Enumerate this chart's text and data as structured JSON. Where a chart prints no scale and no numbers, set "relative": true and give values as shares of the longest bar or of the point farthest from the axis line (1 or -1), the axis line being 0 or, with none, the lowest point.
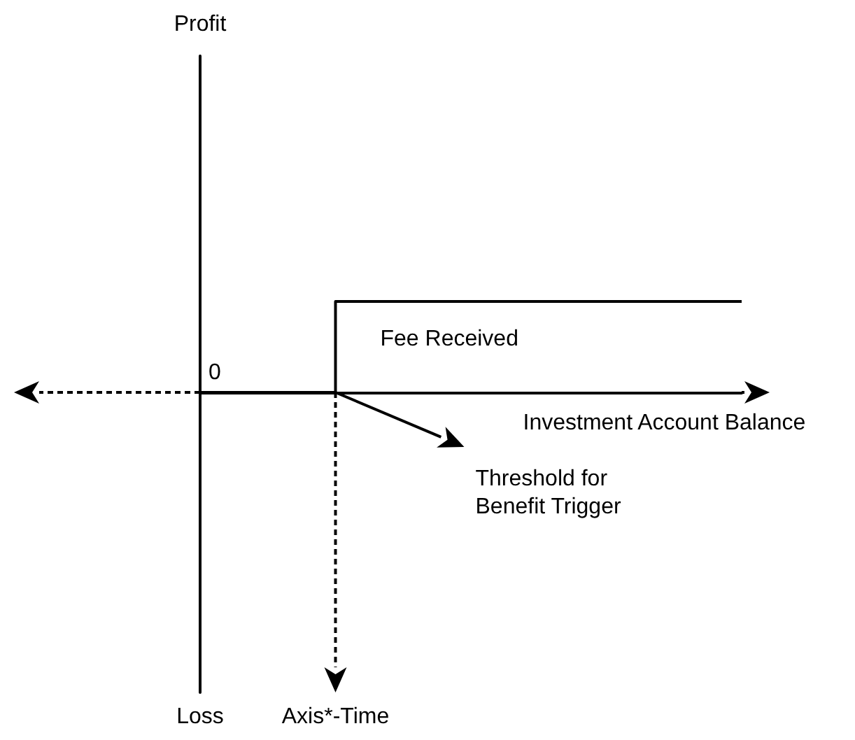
{
  "chart_data": {
    "type": "step",
    "relative": true,
    "categories": [
      null,
      null,
      null,
      null,
      null
    ],
    "series": [
      {
        "color": "#000000",
        "values": [
          0,
          1,
          1,
          1,
          1
        ]
      }
    ],
    "xlabel": "Investment Account Balance",
    "annotations": [
      "Profit",
      "0",
      "Fee Received",
      "Threshold for Benefit Trigger",
      "Axis*-Time",
      "Loss"
    ],
    "marker": "none",
    "grid": false
  }
}
